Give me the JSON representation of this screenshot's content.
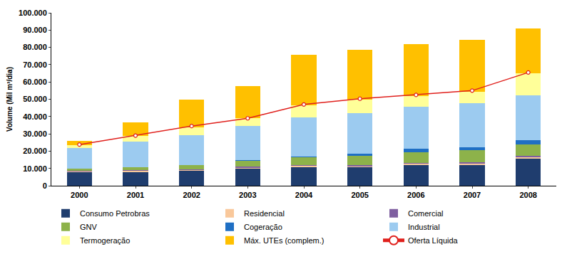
{
  "chart_data": {
    "type": "bar",
    "stacked": true,
    "grid": false,
    "legend": "bottom",
    "y_label": "Volume (Mil m³/dia)",
    "categories": [
      "2000",
      "2001",
      "2002",
      "2003",
      "2004",
      "2005",
      "2006",
      "2007",
      "2008"
    ],
    "ylim": [
      0,
      100000
    ],
    "yticks": [
      0,
      {
        "value": 10000,
        "label": "10.000"
      },
      {
        "value": 20000,
        "label": "20.000"
      },
      {
        "value": 30000,
        "label": "30.000"
      },
      {
        "value": 40000,
        "label": "40.000"
      },
      {
        "value": 50000,
        "label": "50.000"
      },
      {
        "value": 60000,
        "label": "60.000"
      },
      {
        "value": 70000,
        "label": "70.000"
      },
      {
        "value": 80000,
        "label": "80.000"
      },
      {
        "value": 90000,
        "label": "90.000"
      },
      {
        "value": 100000,
        "label": "100.000"
      }
    ],
    "series": [
      {
        "name": "Consumo Petrobras",
        "color": "#1f3d6e",
        "values": [
          8000,
          8200,
          8700,
          10000,
          11000,
          10800,
          12000,
          12300,
          16000
        ]
      },
      {
        "name": "Residencial",
        "color": "#f9c89b",
        "values": [
          500,
          500,
          600,
          600,
          700,
          700,
          800,
          800,
          800
        ]
      },
      {
        "name": "Comercial",
        "color": "#7f5fa0",
        "values": [
          300,
          300,
          300,
          400,
          400,
          400,
          400,
          500,
          500
        ]
      },
      {
        "name": "GNV",
        "color": "#8db24a",
        "values": [
          1000,
          1500,
          2500,
          3500,
          4500,
          5500,
          6300,
          6800,
          6500
        ]
      },
      {
        "name": "Cogeração",
        "color": "#1f6fc4",
        "values": [
          0,
          0,
          0,
          200,
          300,
          1000,
          1800,
          1900,
          2500
        ]
      },
      {
        "name": "Industrial",
        "color": "#9ccbf0",
        "values": [
          12000,
          15000,
          17000,
          20000,
          22500,
          23500,
          24500,
          25500,
          25800
        ]
      },
      {
        "name": "Termogeração",
        "color": "#ffff99",
        "values": [
          1500,
          3500,
          4500,
          4500,
          7000,
          8000,
          6000,
          6500,
          13000
        ]
      },
      {
        "name": "Máx. UTEs (complem.)",
        "color": "#ffc000",
        "values": [
          2500,
          7500,
          16000,
          18300,
          29200,
          28500,
          30300,
          30200,
          26000
        ]
      },
      {
        "name": "Oferta Líquida",
        "type": "line",
        "marker": "circle",
        "color": "#e0201c",
        "values": [
          23800,
          29000,
          34500,
          39000,
          47000,
          50300,
          52500,
          55000,
          65500
        ]
      }
    ]
  }
}
